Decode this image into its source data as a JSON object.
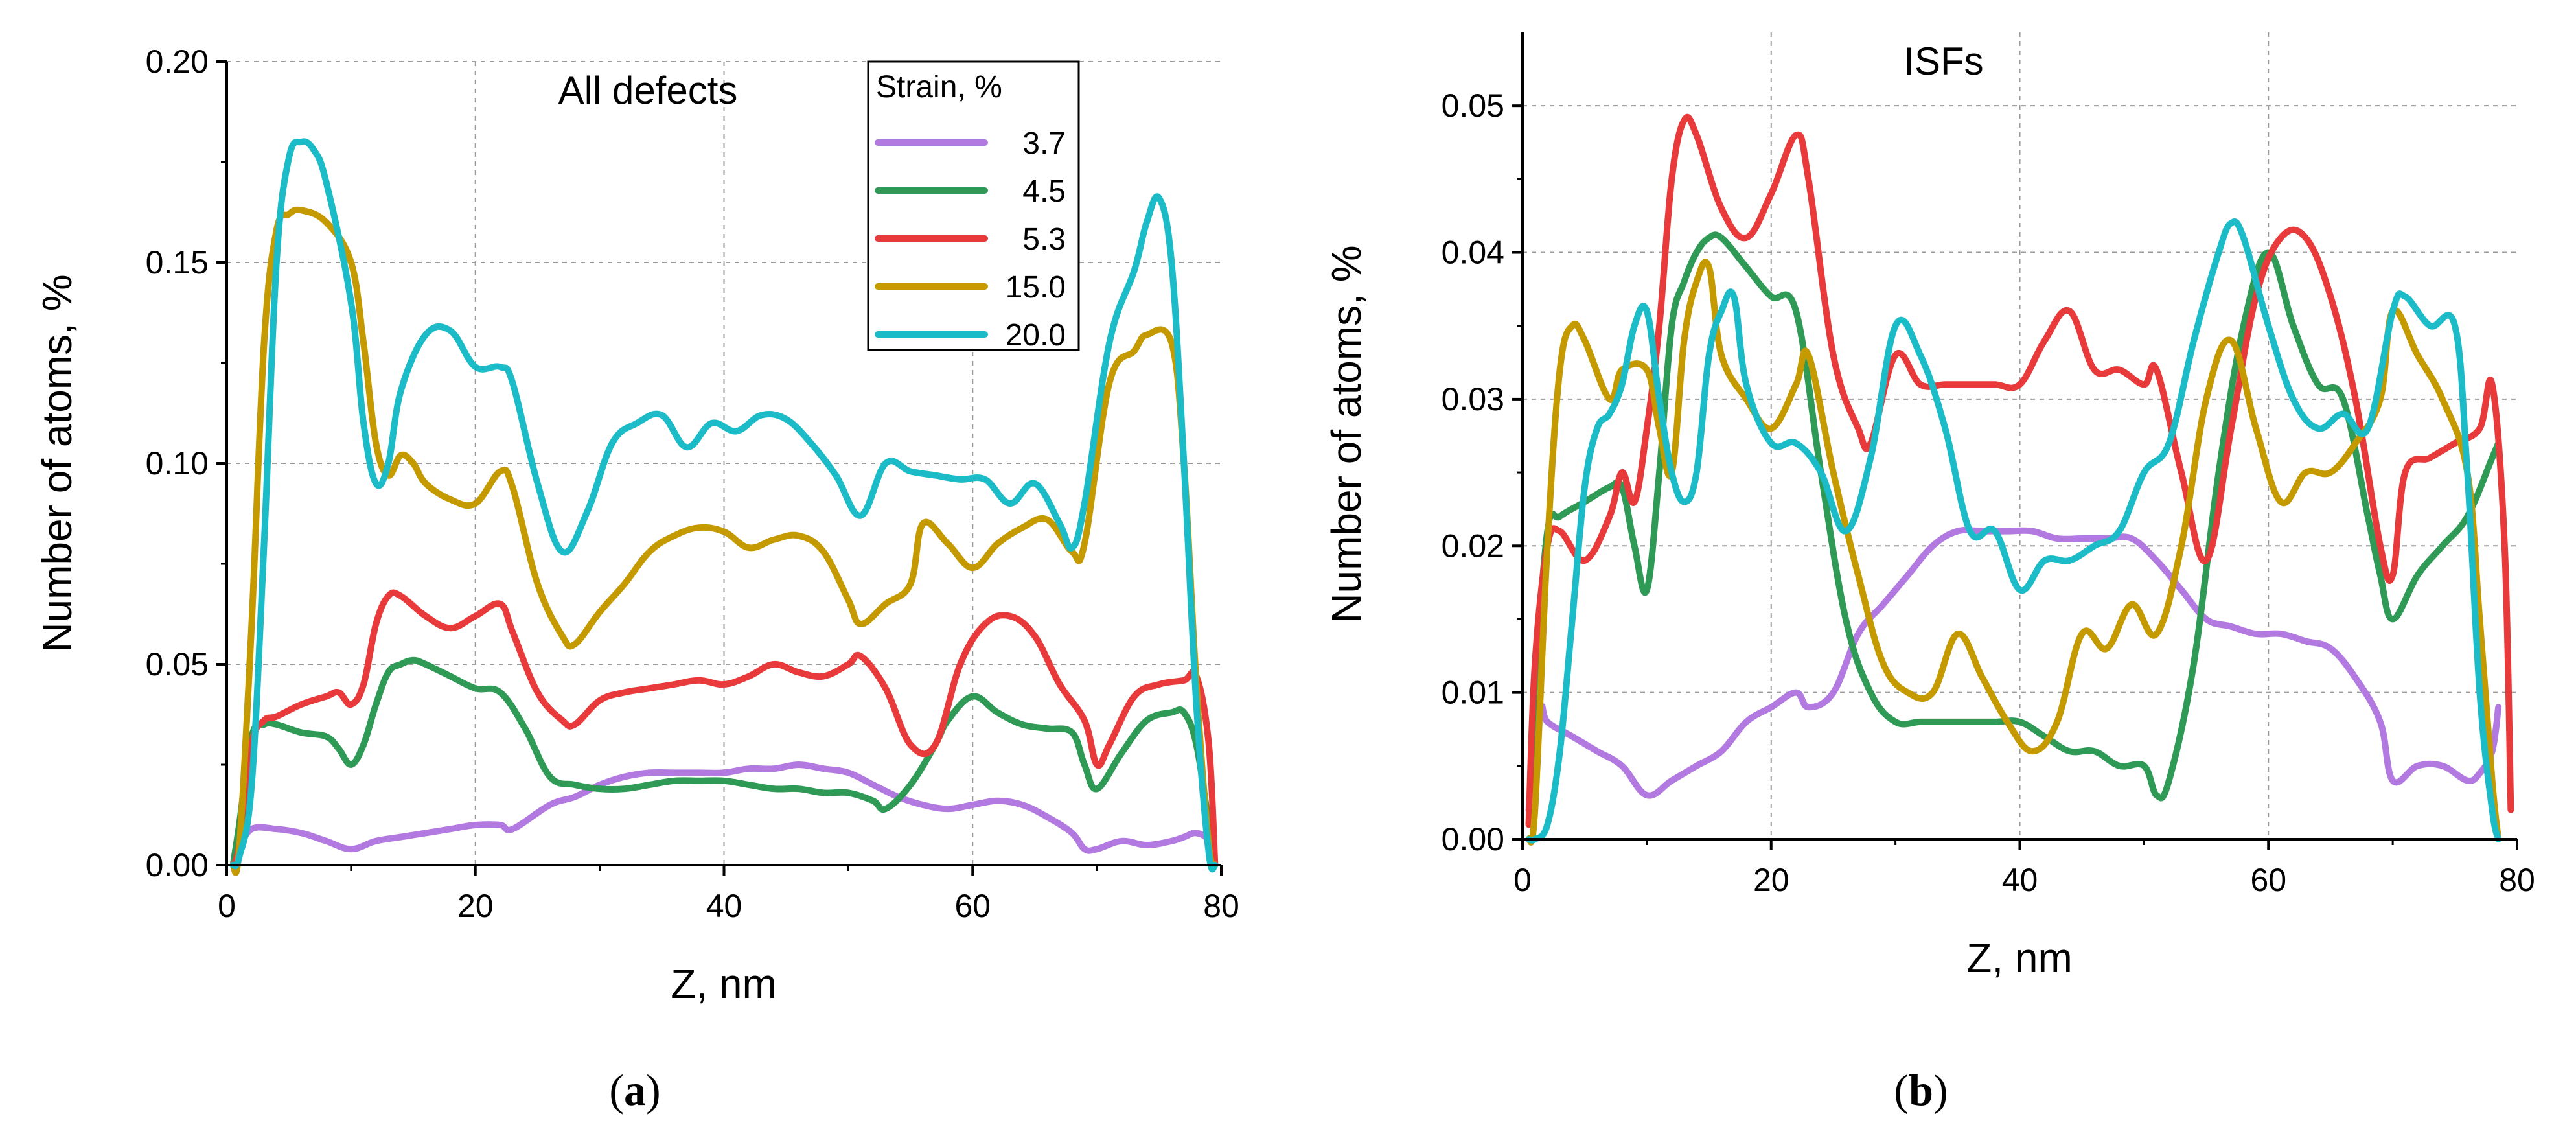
{
  "figure": {
    "caption_a": "a",
    "caption_b": "b"
  },
  "legend": {
    "title": "Strain, %",
    "entries": [
      "3.7",
      "4.5",
      "5.3",
      "15.0",
      "20.0"
    ]
  },
  "chart_data": [
    {
      "type": "line",
      "title": "All defects",
      "xlabel": "Z, nm",
      "ylabel": "Number of atoms, %",
      "xlim": [
        0,
        80
      ],
      "ylim": [
        0,
        0.2
      ],
      "xticks": [
        "0",
        "20",
        "40",
        "60",
        "80"
      ],
      "yticks": [
        "0.00",
        "0.05",
        "0.10",
        "0.15",
        "0.20"
      ],
      "grid": true,
      "legend_position": "top-center",
      "series": [
        {
          "name": "3.7",
          "color": "#b27ae0",
          "x": [
            0.5,
            1,
            2,
            4,
            6,
            8,
            10,
            12,
            14,
            16,
            18,
            20,
            22,
            23,
            26,
            28,
            30,
            32,
            34,
            36,
            38,
            40,
            42,
            44,
            46,
            48,
            50,
            52,
            54,
            56,
            58,
            60,
            62,
            64,
            66,
            68,
            69,
            70,
            72,
            74,
            76,
            77,
            78,
            79,
            79.5
          ],
          "y": [
            0,
            0.004,
            0.009,
            0.009,
            0.008,
            0.006,
            0.004,
            0.006,
            0.007,
            0.008,
            0.009,
            0.01,
            0.01,
            0.009,
            0.015,
            0.017,
            0.02,
            0.022,
            0.023,
            0.023,
            0.023,
            0.023,
            0.024,
            0.024,
            0.025,
            0.024,
            0.023,
            0.02,
            0.017,
            0.015,
            0.014,
            0.015,
            0.016,
            0.015,
            0.012,
            0.008,
            0.004,
            0.004,
            0.006,
            0.005,
            0.006,
            0.007,
            0.008,
            0.006,
            0
          ]
        },
        {
          "name": "4.5",
          "color": "#2e9a56",
          "x": [
            0.5,
            1,
            2,
            3,
            4,
            6,
            8,
            9,
            10,
            11,
            12,
            13,
            14,
            15,
            16,
            18,
            20,
            22,
            24,
            26,
            28,
            30,
            32,
            34,
            36,
            38,
            40,
            42,
            44,
            46,
            48,
            50,
            52,
            53,
            55,
            57,
            58,
            60,
            62,
            64,
            66,
            68,
            69,
            70,
            72,
            74,
            76,
            77,
            78,
            79,
            79.5
          ],
          "y": [
            0,
            0.01,
            0.032,
            0.035,
            0.035,
            0.033,
            0.032,
            0.029,
            0.025,
            0.03,
            0.04,
            0.048,
            0.05,
            0.051,
            0.05,
            0.047,
            0.044,
            0.043,
            0.034,
            0.022,
            0.02,
            0.019,
            0.019,
            0.02,
            0.021,
            0.021,
            0.021,
            0.02,
            0.019,
            0.019,
            0.018,
            0.018,
            0.016,
            0.014,
            0.02,
            0.03,
            0.036,
            0.042,
            0.038,
            0.035,
            0.034,
            0.033,
            0.025,
            0.019,
            0.028,
            0.036,
            0.038,
            0.038,
            0.03,
            0.01,
            0
          ]
        },
        {
          "name": "5.3",
          "color": "#e83a3a",
          "x": [
            0.5,
            1,
            2,
            3,
            4,
            6,
            8,
            9,
            10,
            11,
            12,
            13,
            14,
            16,
            18,
            20,
            22,
            23,
            25,
            27,
            28,
            30,
            32,
            34,
            36,
            38,
            40,
            42,
            44,
            46,
            48,
            50,
            51,
            53,
            55,
            57,
            59,
            61,
            63,
            65,
            67,
            69,
            70,
            71,
            73,
            75,
            77,
            78,
            79,
            79.5
          ],
          "y": [
            0,
            0.005,
            0.03,
            0.036,
            0.037,
            0.04,
            0.042,
            0.043,
            0.04,
            0.045,
            0.06,
            0.067,
            0.067,
            0.062,
            0.059,
            0.062,
            0.065,
            0.058,
            0.043,
            0.036,
            0.035,
            0.041,
            0.043,
            0.044,
            0.045,
            0.046,
            0.045,
            0.047,
            0.05,
            0.048,
            0.047,
            0.05,
            0.052,
            0.044,
            0.03,
            0.03,
            0.05,
            0.06,
            0.062,
            0.057,
            0.045,
            0.036,
            0.025,
            0.03,
            0.042,
            0.045,
            0.046,
            0.047,
            0.03,
            0
          ]
        },
        {
          "name": "15.0",
          "color": "#c59a00",
          "x": [
            0.5,
            1,
            2,
            3,
            4,
            5,
            6,
            8,
            10,
            11,
            12,
            13,
            14,
            15,
            16,
            18,
            20,
            22,
            23,
            25,
            27,
            28,
            30,
            32,
            34,
            36,
            38,
            40,
            42,
            44,
            46,
            48,
            50,
            51,
            53,
            55,
            56,
            58,
            60,
            62,
            64,
            66,
            68,
            69,
            71,
            73,
            74,
            76,
            77,
            78,
            79,
            79.5
          ],
          "y": [
            0,
            0.004,
            0.06,
            0.13,
            0.158,
            0.162,
            0.163,
            0.16,
            0.15,
            0.13,
            0.105,
            0.097,
            0.102,
            0.1,
            0.095,
            0.091,
            0.09,
            0.098,
            0.094,
            0.07,
            0.057,
            0.055,
            0.063,
            0.07,
            0.078,
            0.082,
            0.084,
            0.083,
            0.079,
            0.081,
            0.082,
            0.078,
            0.066,
            0.06,
            0.065,
            0.07,
            0.085,
            0.08,
            0.074,
            0.08,
            0.084,
            0.086,
            0.078,
            0.08,
            0.12,
            0.128,
            0.132,
            0.13,
            0.1,
            0.045,
            0.005,
            0
          ]
        },
        {
          "name": "20.0",
          "color": "#1bbcc8",
          "x": [
            0.5,
            1,
            2,
            3,
            4,
            5,
            6,
            7,
            8,
            10,
            11,
            12,
            13,
            14,
            16,
            18,
            20,
            22,
            23,
            25,
            27,
            29,
            31,
            33,
            35,
            37,
            39,
            41,
            43,
            45,
            47,
            49,
            51,
            53,
            55,
            57,
            59,
            61,
            63,
            65,
            67,
            68,
            69,
            71,
            73,
            74,
            75,
            76,
            77,
            78,
            79,
            79.5
          ],
          "y": [
            0,
            0.002,
            0.02,
            0.08,
            0.15,
            0.176,
            0.18,
            0.178,
            0.17,
            0.14,
            0.11,
            0.095,
            0.1,
            0.118,
            0.132,
            0.133,
            0.124,
            0.124,
            0.12,
            0.095,
            0.078,
            0.088,
            0.105,
            0.11,
            0.112,
            0.104,
            0.11,
            0.108,
            0.112,
            0.111,
            0.105,
            0.097,
            0.087,
            0.1,
            0.098,
            0.097,
            0.096,
            0.096,
            0.09,
            0.095,
            0.085,
            0.079,
            0.09,
            0.13,
            0.148,
            0.16,
            0.166,
            0.15,
            0.1,
            0.04,
            0.003,
            0
          ]
        }
      ]
    },
    {
      "type": "line",
      "title": "ISFs",
      "xlabel": "Z, nm",
      "ylabel": "Number of atoms, %",
      "xlim": [
        0,
        80
      ],
      "ylim": [
        0,
        0.055
      ],
      "xticks": [
        "0",
        "20",
        "40",
        "60",
        "80"
      ],
      "yticks": [
        "0.00",
        "0.01",
        "0.02",
        "0.03",
        "0.04",
        "0.05"
      ],
      "grid": true,
      "series": [
        {
          "name": "3.7",
          "color": "#b27ae0",
          "x": [
            0.5,
            1,
            1.5,
            2,
            4,
            6,
            8,
            10,
            12,
            14,
            16,
            18,
            20,
            22,
            23,
            25,
            27,
            29,
            31,
            33,
            35,
            37,
            39,
            41,
            43,
            45,
            47,
            49,
            51,
            53,
            55,
            57,
            59,
            61,
            63,
            65,
            67,
            69,
            70,
            72,
            74,
            76,
            77,
            78,
            78.5
          ],
          "y": [
            0.002,
            0.006,
            0.009,
            0.008,
            0.007,
            0.006,
            0.005,
            0.003,
            0.004,
            0.005,
            0.006,
            0.008,
            0.009,
            0.01,
            0.009,
            0.01,
            0.014,
            0.016,
            0.018,
            0.02,
            0.021,
            0.021,
            0.021,
            0.021,
            0.0205,
            0.0205,
            0.0205,
            0.0205,
            0.019,
            0.017,
            0.015,
            0.0145,
            0.014,
            0.014,
            0.0135,
            0.013,
            0.011,
            0.008,
            0.004,
            0.005,
            0.005,
            0.004,
            0.0045,
            0.006,
            0.009
          ]
        },
        {
          "name": "4.5",
          "color": "#2e9a56",
          "x": [
            0.5,
            1,
            2,
            3,
            5,
            7,
            8,
            9,
            10,
            11,
            12,
            13,
            14,
            15,
            16,
            18,
            20,
            22,
            24,
            26,
            28,
            30,
            32,
            34,
            36,
            38,
            40,
            42,
            44,
            46,
            48,
            50,
            51,
            52,
            54,
            56,
            58,
            60,
            62,
            64,
            66,
            68,
            69,
            70,
            72,
            74,
            76,
            78,
            78.5
          ],
          "y": [
            0.001,
            0.01,
            0.021,
            0.022,
            0.023,
            0.024,
            0.024,
            0.02,
            0.017,
            0.025,
            0.035,
            0.038,
            0.04,
            0.041,
            0.041,
            0.039,
            0.037,
            0.036,
            0.025,
            0.015,
            0.01,
            0.008,
            0.008,
            0.008,
            0.008,
            0.008,
            0.008,
            0.007,
            0.006,
            0.006,
            0.005,
            0.005,
            0.003,
            0.004,
            0.012,
            0.025,
            0.035,
            0.04,
            0.035,
            0.031,
            0.03,
            0.022,
            0.018,
            0.015,
            0.018,
            0.02,
            0.022,
            0.026,
            0.027
          ]
        },
        {
          "name": "5.3",
          "color": "#e83a3a",
          "x": [
            0.5,
            1,
            2,
            3,
            5,
            7,
            8,
            9,
            10,
            11,
            12,
            13,
            14,
            16,
            18,
            20,
            22,
            23,
            25,
            27,
            28,
            30,
            32,
            34,
            36,
            38,
            40,
            42,
            44,
            46,
            48,
            50,
            51,
            53,
            55,
            57,
            59,
            61,
            63,
            65,
            67,
            69,
            70,
            71,
            73,
            75,
            77,
            78,
            79,
            79.5
          ],
          "y": [
            0.001,
            0.012,
            0.02,
            0.021,
            0.019,
            0.022,
            0.025,
            0.023,
            0.028,
            0.035,
            0.045,
            0.049,
            0.048,
            0.043,
            0.041,
            0.044,
            0.048,
            0.045,
            0.033,
            0.028,
            0.027,
            0.033,
            0.031,
            0.031,
            0.031,
            0.031,
            0.031,
            0.034,
            0.036,
            0.032,
            0.032,
            0.031,
            0.032,
            0.025,
            0.019,
            0.028,
            0.037,
            0.041,
            0.041,
            0.037,
            0.03,
            0.02,
            0.018,
            0.025,
            0.026,
            0.027,
            0.028,
            0.031,
            0.02,
            0.002
          ]
        },
        {
          "name": "15.0",
          "color": "#c59a00",
          "x": [
            0.5,
            1,
            2,
            3,
            4,
            5,
            7,
            8,
            10,
            11,
            12,
            13,
            14,
            15,
            16,
            18,
            20,
            22,
            23,
            25,
            27,
            29,
            31,
            33,
            35,
            37,
            39,
            41,
            43,
            45,
            47,
            49,
            51,
            53,
            55,
            57,
            59,
            61,
            63,
            65,
            67,
            69,
            70,
            72,
            74,
            76,
            77,
            78,
            78.5
          ],
          "y": [
            0,
            0.002,
            0.02,
            0.032,
            0.035,
            0.034,
            0.03,
            0.032,
            0.032,
            0.028,
            0.025,
            0.034,
            0.038,
            0.039,
            0.033,
            0.03,
            0.028,
            0.031,
            0.033,
            0.025,
            0.018,
            0.012,
            0.01,
            0.01,
            0.014,
            0.011,
            0.008,
            0.006,
            0.008,
            0.014,
            0.013,
            0.016,
            0.014,
            0.02,
            0.03,
            0.034,
            0.028,
            0.023,
            0.025,
            0.025,
            0.027,
            0.03,
            0.036,
            0.033,
            0.03,
            0.025,
            0.015,
            0.004,
            0
          ]
        },
        {
          "name": "20.0",
          "color": "#1bbcc8",
          "x": [
            0.5,
            1,
            2,
            3,
            4,
            5,
            6,
            7,
            8,
            9,
            10,
            11,
            12,
            13,
            14,
            15,
            16,
            17,
            18,
            20,
            22,
            24,
            26,
            28,
            30,
            32,
            34,
            36,
            38,
            40,
            42,
            44,
            46,
            48,
            50,
            52,
            54,
            56,
            57,
            58,
            60,
            62,
            64,
            66,
            68,
            70,
            71,
            73,
            75,
            76,
            77,
            78,
            78.5
          ],
          "y": [
            0,
            0,
            0.001,
            0.006,
            0.015,
            0.024,
            0.028,
            0.029,
            0.031,
            0.035,
            0.036,
            0.03,
            0.025,
            0.023,
            0.025,
            0.033,
            0.036,
            0.037,
            0.031,
            0.027,
            0.027,
            0.025,
            0.021,
            0.026,
            0.035,
            0.033,
            0.028,
            0.021,
            0.021,
            0.017,
            0.019,
            0.019,
            0.02,
            0.021,
            0.025,
            0.027,
            0.034,
            0.04,
            0.042,
            0.041,
            0.035,
            0.03,
            0.028,
            0.029,
            0.028,
            0.036,
            0.037,
            0.035,
            0.035,
            0.025,
            0.01,
            0.002,
            0
          ]
        }
      ]
    }
  ]
}
